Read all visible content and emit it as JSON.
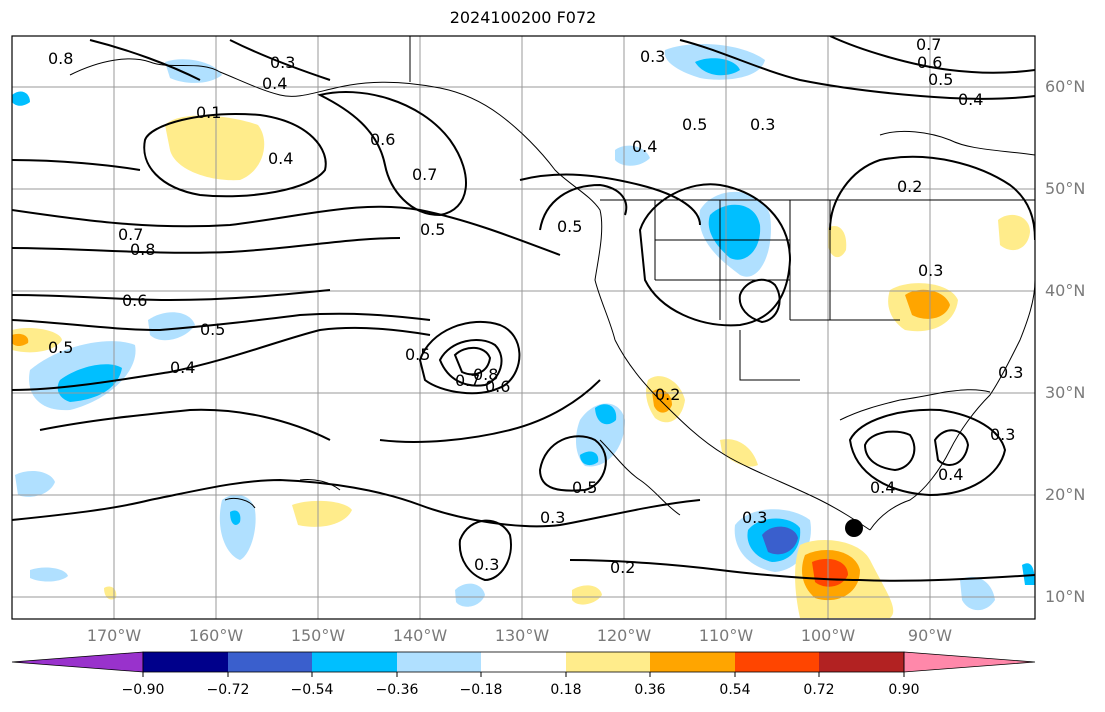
{
  "title": "2024100200 F072",
  "latitude_labels": [
    "60°N",
    "50°N",
    "40°N",
    "30°N",
    "20°N",
    "10°N"
  ],
  "longitude_labels": [
    "170°W",
    "160°W",
    "150°W",
    "140°W",
    "130°W",
    "120°W",
    "110°W",
    "100°W",
    "90°W"
  ],
  "colorbar": {
    "tick_labels": [
      "−0.90",
      "−0.72",
      "−0.54",
      "−0.36",
      "−0.18",
      "0.18",
      "0.36",
      "0.54",
      "0.72",
      "0.90"
    ],
    "colors": [
      "#9932cc",
      "#00008b",
      "#3a5fcd",
      "#00bfff",
      "#b0e0ff",
      "#ffffff",
      "#ffec8b",
      "#ffa500",
      "#ff4500",
      "#b22222",
      "#ff88aa"
    ]
  },
  "contour_labels": [
    "0.8",
    "0.3",
    "0.4",
    "0.1",
    "0.4",
    "0.6",
    "0.7",
    "0.5",
    "0.7",
    "0.8",
    "0.6",
    "0.5",
    "0.4",
    "0.5",
    "0.5",
    "0.8",
    "0.7",
    "0.6",
    "0.5",
    "0.3",
    "0.3",
    "0.2",
    "0.3",
    "0.2",
    "0.5",
    "0.4",
    "0.5",
    "0.3",
    "0.7",
    "0.6",
    "0.5",
    "0.4",
    "0.2",
    "0.3",
    "0.4",
    "0.4",
    "0.3",
    "0.3",
    "0.3"
  ],
  "marker": "storm-center-dot"
}
